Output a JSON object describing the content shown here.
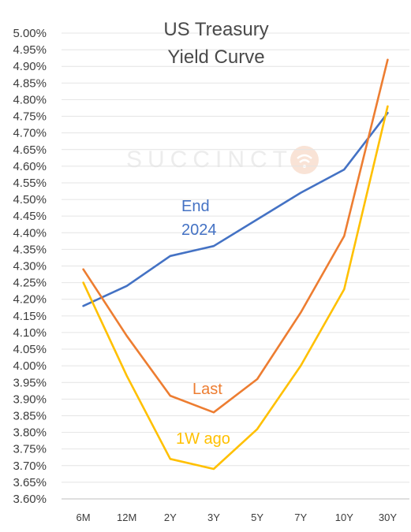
{
  "chart_data": {
    "type": "line",
    "title_lines": [
      "US Treasury",
      "Yield Curve"
    ],
    "watermark": "SUCCINCT",
    "categories": [
      "6M",
      "12M",
      "2Y",
      "3Y",
      "5Y",
      "7Y",
      "10Y",
      "30Y"
    ],
    "ylim": [
      3.6,
      5.0
    ],
    "ytick_step": 0.05,
    "ytick_format": "percent_2dp",
    "grid": true,
    "series": [
      {
        "name": "End 2024",
        "label_lines": [
          "End",
          "2024"
        ],
        "color": "#4472c4",
        "values": [
          4.18,
          4.24,
          4.33,
          4.36,
          4.44,
          4.52,
          4.59,
          4.76
        ]
      },
      {
        "name": "Last",
        "label_lines": [
          "Last"
        ],
        "color": "#ed7d31",
        "values": [
          4.29,
          4.09,
          3.91,
          3.86,
          3.96,
          4.16,
          4.39,
          4.92
        ]
      },
      {
        "name": "1W ago",
        "label_lines": [
          "1W ago"
        ],
        "color": "#ffc000",
        "values": [
          4.25,
          3.97,
          3.72,
          3.69,
          3.81,
          4.0,
          4.23,
          4.78
        ]
      }
    ]
  }
}
